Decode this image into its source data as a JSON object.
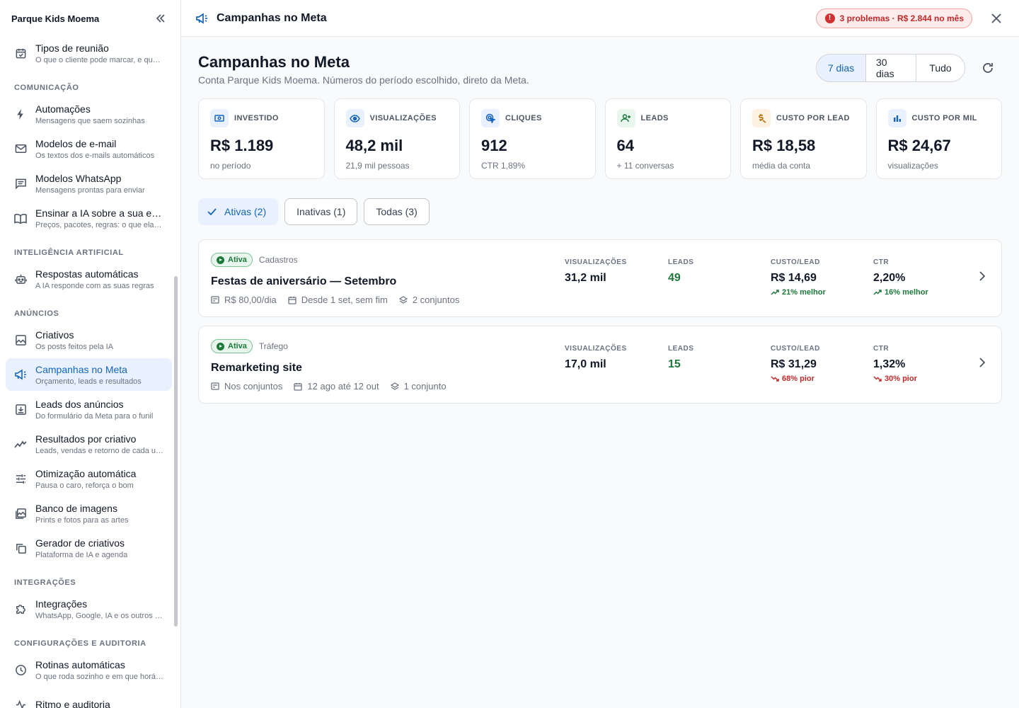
{
  "sidebar": {
    "brand": "Parque Kids Moema",
    "top_items": [
      {
        "title": "Tipos de reunião",
        "sub": "O que o cliente pode marcar, e qu…"
      }
    ],
    "sections": [
      {
        "label": "COMUNICAÇÃO",
        "items": [
          {
            "title": "Automações",
            "sub": "Mensagens que saem sozinhas"
          },
          {
            "title": "Modelos de e-mail",
            "sub": "Os textos dos e-mails automáticos"
          },
          {
            "title": "Modelos WhatsApp",
            "sub": "Mensagens prontas para enviar"
          },
          {
            "title": "Ensinar a IA sobre a sua em…",
            "sub": "Preços, pacotes, regras: o que ela …"
          }
        ]
      },
      {
        "label": "INTELIGÊNCIA ARTIFICIAL",
        "items": [
          {
            "title": "Respostas automáticas",
            "sub": "A IA responde com as suas regras"
          }
        ]
      },
      {
        "label": "ANÚNCIOS",
        "items": [
          {
            "title": "Criativos",
            "sub": "Os posts feitos pela IA"
          },
          {
            "title": "Campanhas no Meta",
            "sub": "Orçamento, leads e resultados"
          },
          {
            "title": "Leads dos anúncios",
            "sub": "Do formulário da Meta para o funil"
          },
          {
            "title": "Resultados por criativo",
            "sub": "Leads, vendas e retorno de cada u…"
          },
          {
            "title": "Otimização automática",
            "sub": "Pausa o caro, reforça o bom"
          },
          {
            "title": "Banco de imagens",
            "sub": "Prints e fotos para as artes"
          },
          {
            "title": "Gerador de criativos",
            "sub": "Plataforma de IA e agenda"
          }
        ]
      },
      {
        "label": "INTEGRAÇÕES",
        "items": [
          {
            "title": "Integrações",
            "sub": "WhatsApp, Google, IA e os outros …"
          }
        ]
      },
      {
        "label": "CONFIGURAÇÕES E AUDITORIA",
        "items": [
          {
            "title": "Rotinas automáticas",
            "sub": "O que roda sozinho e em que horá…"
          },
          {
            "title": "Ritmo e auditoria",
            "sub": ""
          }
        ]
      }
    ]
  },
  "topbar": {
    "title": "Campanhas no Meta",
    "problems_badge": "3 problemas · R$ 2.844 no mês",
    "error_glyph": "!"
  },
  "header": {
    "title": "Campanhas no Meta",
    "subtitle": "Conta Parque Kids Moema. Números do período escolhido, direto da Meta.",
    "periods": [
      "7 dias",
      "30 dias",
      "Tudo"
    ],
    "selected_period": "7 dias"
  },
  "kpis": [
    {
      "label": "INVESTIDO",
      "value": "R$ 1.189",
      "sub": "no período",
      "icon": "cash-icon",
      "color": "#1565c0",
      "bg": "#e8f1fd"
    },
    {
      "label": "VISUALIZAÇÕES",
      "value": "48,2 mil",
      "sub": "21,9 mil pessoas",
      "icon": "eye-icon",
      "color": "#1565c0",
      "bg": "#e8f1fd"
    },
    {
      "label": "CLIQUES",
      "value": "912",
      "sub": "CTR 1,89%",
      "icon": "cursor-icon",
      "color": "#1565c0",
      "bg": "#e8f1fd"
    },
    {
      "label": "LEADS",
      "value": "64",
      "sub": "+ 11 conversas",
      "icon": "person-add-icon",
      "color": "#1b7a3a",
      "bg": "#e9f6ee"
    },
    {
      "label": "CUSTO POR LEAD",
      "value": "R$ 18,58",
      "sub": "média da conta",
      "icon": "price-icon",
      "color": "#b26a00",
      "bg": "#fdf1e2"
    },
    {
      "label": "CUSTO POR MIL",
      "value": "R$ 24,67",
      "sub": "visualizações",
      "icon": "bar-chart-icon",
      "color": "#1565c0",
      "bg": "#e8f1fd"
    }
  ],
  "filters": [
    {
      "label": "Ativas (2)",
      "selected": true
    },
    {
      "label": "Inativas (1)",
      "selected": false
    },
    {
      "label": "Todas (3)",
      "selected": false
    }
  ],
  "campaigns": [
    {
      "status": "Ativa",
      "kind": "Cadastros",
      "name": "Festas de aniversário — Setembro",
      "budget": "R$ 80,00/dia",
      "period": "Desde 1 set, sem fim",
      "sets": "2 conjuntos",
      "metrics": {
        "views_label": "VISUALIZAÇÕES",
        "views": "31,2 mil",
        "leads_label": "LEADS",
        "leads": "49",
        "cpl_label": "CUSTO/LEAD",
        "cpl": "R$ 14,69",
        "cpl_delta": "21% melhor",
        "cpl_trend": "good",
        "ctr_label": "CTR",
        "ctr": "2,20%",
        "ctr_delta": "16% melhor",
        "ctr_trend": "good"
      }
    },
    {
      "status": "Ativa",
      "kind": "Tráfego",
      "name": "Remarketing site",
      "budget": "Nos conjuntos",
      "period": "12 ago até 12 out",
      "sets": "1 conjunto",
      "metrics": {
        "views_label": "VISUALIZAÇÕES",
        "views": "17,0 mil",
        "leads_label": "LEADS",
        "leads": "15",
        "cpl_label": "CUSTO/LEAD",
        "cpl": "R$ 31,29",
        "cpl_delta": "68% pior",
        "cpl_trend": "bad",
        "ctr_label": "CTR",
        "ctr": "1,32%",
        "ctr_delta": "30% pior",
        "ctr_trend": "bad"
      }
    }
  ]
}
